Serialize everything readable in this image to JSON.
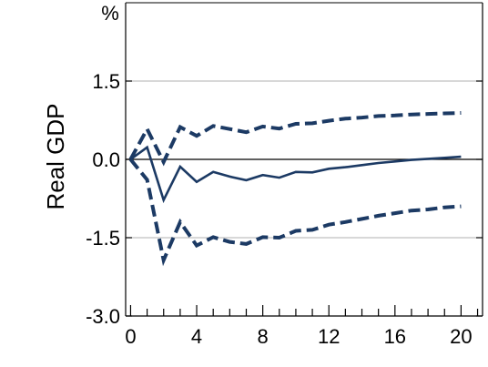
{
  "chart_data": {
    "type": "line",
    "title": "",
    "unit_label": "%",
    "ylabel": "Real GDP",
    "xlabel": "",
    "xlim": [
      -0.3,
      21.3
    ],
    "ylim": [
      -3.0,
      3.0
    ],
    "xticks": [
      0,
      4,
      8,
      12,
      16,
      20
    ],
    "yticks": [
      -3.0,
      -1.5,
      0.0,
      1.5
    ],
    "ytick_labels": [
      "-3.0",
      "-1.5",
      "0.0",
      "1.5"
    ],
    "grid": "horizontal",
    "colors": {
      "series": "#1c3a64",
      "grid": "#b0b0b0",
      "axis": "#000000"
    },
    "series": [
      {
        "style": "solid",
        "x": [
          0,
          1,
          2,
          3,
          4,
          5,
          6,
          7,
          8,
          9,
          10,
          11,
          12,
          13,
          14,
          15,
          16,
          17,
          18,
          19,
          20
        ],
        "values": [
          0.0,
          0.23,
          -0.78,
          -0.14,
          -0.43,
          -0.24,
          -0.33,
          -0.4,
          -0.3,
          -0.35,
          -0.24,
          -0.25,
          -0.18,
          -0.15,
          -0.11,
          -0.07,
          -0.04,
          -0.01,
          0.01,
          0.03,
          0.05
        ]
      },
      {
        "style": "dashed",
        "x": [
          0,
          1,
          2,
          3,
          4,
          5,
          6,
          7,
          8,
          9,
          10,
          11,
          12,
          13,
          14,
          15,
          16,
          17,
          18,
          19,
          20
        ],
        "values": [
          0.0,
          0.58,
          -0.05,
          0.62,
          0.45,
          0.64,
          0.58,
          0.52,
          0.63,
          0.59,
          0.68,
          0.69,
          0.74,
          0.78,
          0.8,
          0.83,
          0.84,
          0.86,
          0.87,
          0.88,
          0.89
        ]
      },
      {
        "style": "dashed",
        "x": [
          0,
          1,
          2,
          3,
          4,
          5,
          6,
          7,
          8,
          9,
          10,
          11,
          12,
          13,
          14,
          15,
          16,
          17,
          18,
          19,
          20
        ],
        "values": [
          0.0,
          -0.39,
          -1.93,
          -1.2,
          -1.65,
          -1.49,
          -1.58,
          -1.62,
          -1.49,
          -1.5,
          -1.37,
          -1.35,
          -1.25,
          -1.2,
          -1.14,
          -1.08,
          -1.03,
          -0.98,
          -0.96,
          -0.92,
          -0.9
        ]
      }
    ]
  }
}
